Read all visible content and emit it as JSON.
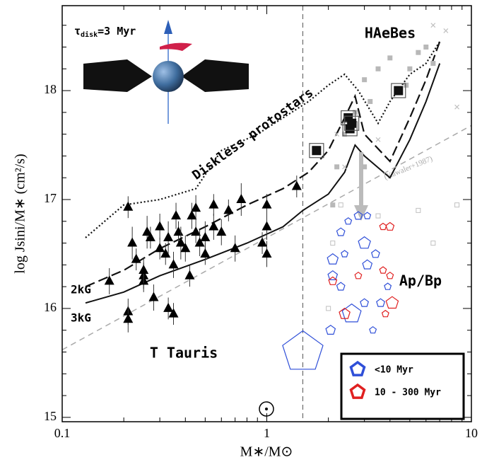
{
  "chart_data": {
    "type": "scatter",
    "xlabel": "M∗/M⊙",
    "ylabel": "log Jsini/M∗ (cm²/s)",
    "xscale": "log",
    "xlim": [
      0.1,
      10
    ],
    "ylim": [
      14.96,
      18.78
    ],
    "xticks": [
      0.1,
      1,
      10
    ],
    "yticks": [
      15,
      16,
      17,
      18
    ],
    "xminorticks": [
      0.2,
      0.3,
      0.4,
      0.5,
      0.6,
      0.7,
      0.8,
      0.9,
      2,
      3,
      4,
      5,
      6,
      7,
      8,
      9
    ],
    "yminorticks": [
      15.2,
      15.4,
      15.6,
      15.8,
      16.2,
      16.4,
      16.6,
      16.8,
      17.2,
      17.4,
      17.6,
      17.8,
      18.2,
      18.4,
      18.6
    ],
    "divider_x": 1.5,
    "annotations": {
      "tau": {
        "symbol": "τ",
        "sub": "disk",
        "rest": "=3 Myr"
      },
      "haebes": "HAeBes",
      "diskless": "Diskless protostars",
      "kawaler": "(Kawaler+1987)",
      "b2": "2kG",
      "b3": "3kG",
      "ttauris": "T Tauris",
      "apbp": "Ap/Bp"
    },
    "lines": [
      {
        "style": "dotted",
        "color": "#111111",
        "x": [
          0.13,
          0.2,
          0.3,
          0.45,
          0.6,
          0.9,
          1.2,
          1.6,
          2.0,
          2.4,
          2.8,
          3.5,
          4.0,
          5.0,
          6.0,
          7.0
        ],
        "values": [
          16.65,
          16.95,
          17.0,
          17.1,
          17.45,
          17.6,
          17.75,
          17.9,
          18.05,
          18.15,
          18.0,
          17.7,
          17.9,
          18.15,
          18.25,
          18.45
        ]
      },
      {
        "style": "dashed",
        "color": "#111111",
        "x": [
          0.13,
          0.2,
          0.3,
          0.5,
          0.8,
          1.2,
          1.6,
          2.0,
          2.4,
          2.7,
          3.0,
          4.0,
          5.0,
          6.0,
          7.0
        ],
        "values": [
          16.2,
          16.35,
          16.55,
          16.75,
          16.95,
          17.1,
          17.25,
          17.45,
          17.75,
          17.95,
          17.6,
          17.35,
          17.75,
          18.1,
          18.45
        ]
      },
      {
        "style": "solid",
        "color": "#111111",
        "x": [
          0.13,
          0.2,
          0.3,
          0.5,
          0.8,
          1.2,
          1.5,
          2.0,
          2.4,
          2.7,
          3.0,
          4.0,
          5.0,
          6.0,
          7.0
        ],
        "values": [
          16.05,
          16.15,
          16.3,
          16.45,
          16.6,
          16.75,
          16.9,
          17.05,
          17.25,
          17.5,
          17.4,
          17.2,
          17.55,
          17.9,
          18.25
        ]
      },
      {
        "style": "gray-dashed",
        "color": "#aaaaaa",
        "x": [
          0.1,
          10
        ],
        "values": [
          15.62,
          17.68
        ]
      }
    ],
    "series": [
      {
        "marker": "triangle",
        "color": "#000000",
        "x": [
          0.17,
          0.21,
          0.21,
          0.21,
          0.22,
          0.23,
          0.25,
          0.25,
          0.26,
          0.27,
          0.28,
          0.3,
          0.3,
          0.32,
          0.33,
          0.35,
          0.35,
          0.36,
          0.37,
          0.38,
          0.4,
          0.42,
          0.43,
          0.45,
          0.47,
          0.5,
          0.5,
          0.55,
          0.55,
          0.6,
          0.65,
          0.7,
          0.75,
          0.95,
          1.0,
          1.0,
          1.0,
          1.4,
          0.45,
          0.33,
          0.25
        ],
        "values": [
          16.25,
          16.93,
          15.97,
          15.9,
          16.6,
          16.45,
          16.3,
          16.25,
          16.7,
          16.65,
          16.1,
          16.55,
          16.75,
          16.5,
          16.65,
          16.4,
          15.95,
          16.85,
          16.7,
          16.6,
          16.55,
          16.3,
          16.85,
          16.7,
          16.6,
          16.65,
          16.5,
          16.75,
          16.95,
          16.7,
          16.9,
          16.55,
          17.0,
          16.6,
          16.5,
          16.95,
          16.75,
          17.12,
          16.92,
          16.0,
          16.35
        ],
        "yerr": [
          0.12,
          0.1,
          0.12,
          0.12,
          0.15,
          0.1,
          0.12,
          0.1,
          0.15,
          0.1,
          0.12,
          0.1,
          0.12,
          0.1,
          0.15,
          0.12,
          0.1,
          0.12,
          0.1,
          0.15,
          0.12,
          0.1,
          0.12,
          0.1,
          0.12,
          0.15,
          0.1,
          0.12,
          0.1,
          0.12,
          0.1,
          0.12,
          0.15,
          0.1,
          0.12,
          0.1,
          0.12,
          0.1,
          0.12,
          0.1,
          0.12
        ]
      },
      {
        "marker": "gray-square",
        "color": "#b8b8b8",
        "x": [
          2.2,
          2.4,
          2.7,
          3.0,
          3.2,
          3.5,
          4.0,
          5.0,
          6.0,
          6.5,
          3.0,
          2.1,
          4.8,
          5.5
        ],
        "values": [
          17.3,
          17.6,
          17.8,
          18.1,
          17.9,
          18.2,
          18.3,
          18.2,
          18.4,
          18.25,
          17.3,
          16.95,
          18.05,
          18.35
        ]
      },
      {
        "marker": "cross",
        "color": "#c0c0c0",
        "x": [
          6.5,
          7.5,
          8.5,
          2.2,
          2.4,
          3.5
        ],
        "values": [
          18.6,
          18.55,
          17.85,
          17.6,
          17.3,
          17.55
        ]
      },
      {
        "marker": "open-square",
        "color": "#c0c0c0",
        "x": [
          2.0,
          2.1,
          2.3,
          3.5,
          5.5,
          6.5,
          8.5
        ],
        "values": [
          16.0,
          16.6,
          16.95,
          16.85,
          16.9,
          16.6,
          16.95
        ]
      },
      {
        "marker": "square",
        "color": "#111111",
        "x": [
          1.75,
          2.5,
          2.55,
          2.6,
          4.4
        ],
        "values": [
          17.45,
          17.75,
          17.65,
          17.7,
          18.0
        ]
      },
      {
        "marker": "pentagon",
        "name": "<10 Myr",
        "color": "#2f4fd8",
        "x": [
          2.1,
          2.1,
          2.3,
          2.4,
          2.3,
          2.5,
          2.8,
          3.0,
          3.1,
          3.4,
          3.1,
          3.9,
          3.6,
          3.3,
          2.6,
          2.05,
          1.5,
          3.0
        ],
        "values": [
          16.45,
          16.3,
          16.2,
          16.5,
          16.7,
          16.8,
          16.85,
          16.6,
          16.4,
          16.5,
          16.85,
          16.2,
          16.05,
          15.8,
          15.95,
          15.8,
          15.6,
          16.05
        ],
        "sizes": [
          8,
          7,
          6,
          5,
          6,
          5,
          6,
          9,
          7,
          6,
          5,
          5,
          6,
          5,
          14,
          7,
          30,
          6
        ]
      },
      {
        "marker": "pentagon",
        "name": "10 - 300 Myr",
        "color": "#e02020",
        "x": [
          3.7,
          4.0,
          3.7,
          2.8,
          2.1,
          2.4,
          4.0,
          4.1,
          3.8
        ],
        "values": [
          16.75,
          16.75,
          16.35,
          16.3,
          16.25,
          15.95,
          16.3,
          16.05,
          15.95
        ],
        "sizes": [
          5,
          6,
          5,
          5,
          6,
          8,
          5,
          9,
          5
        ]
      }
    ]
  }
}
